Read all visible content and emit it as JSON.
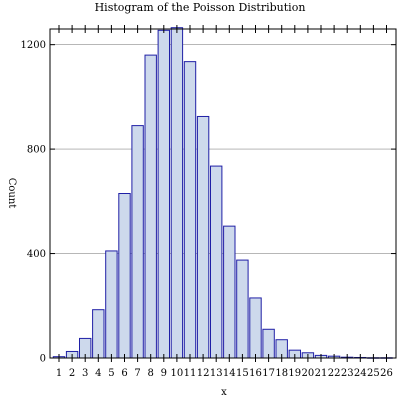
{
  "chart_data": {
    "type": "bar",
    "title": "Histogram of the Poisson Distribution",
    "xlabel": "x",
    "ylabel": "Count",
    "categories": [
      "1",
      "2",
      "3",
      "4",
      "5",
      "6",
      "7",
      "8",
      "9",
      "10",
      "11",
      "12",
      "13",
      "14",
      "15",
      "16",
      "17",
      "18",
      "19",
      "20",
      "21",
      "22",
      "23",
      "24",
      "25",
      "26"
    ],
    "values": [
      5,
      25,
      75,
      185,
      410,
      630,
      890,
      1160,
      1255,
      1265,
      1135,
      925,
      735,
      505,
      375,
      230,
      110,
      70,
      30,
      20,
      10,
      7,
      3,
      2,
      1,
      1
    ],
    "ylim": [
      0,
      1260
    ],
    "yticks": [
      "0",
      "400",
      "800",
      "1200"
    ],
    "ytick_values": [
      0,
      400,
      800,
      1200
    ],
    "grid": true,
    "colors": {
      "bar_fill": "#cdd9ec",
      "bar_edge": "#1f1fa6"
    }
  }
}
